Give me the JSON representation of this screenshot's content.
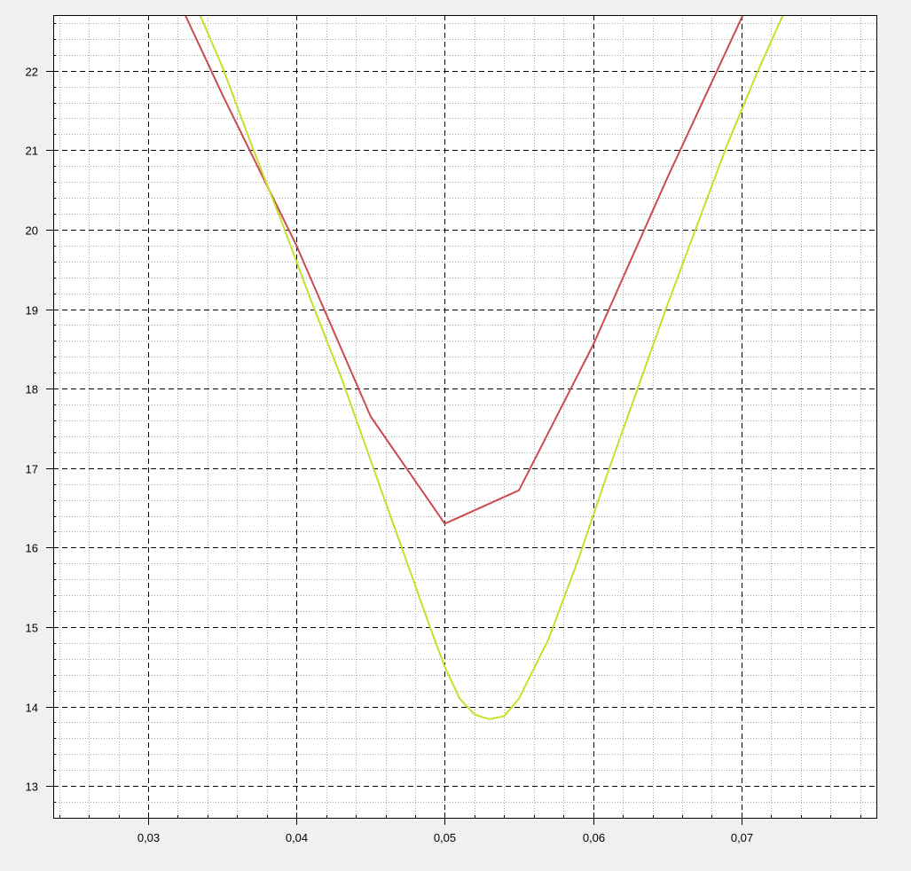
{
  "chart_data": {
    "type": "line",
    "title": "",
    "xlabel": "",
    "ylabel": "",
    "xlim": [
      0.0236,
      0.0791
    ],
    "ylim": [
      12.6,
      22.7
    ],
    "x_ticks": [
      0.03,
      0.04,
      0.05,
      0.06,
      0.07
    ],
    "x_tick_labels": [
      "0,03",
      "0,04",
      "0,05",
      "0,06",
      "0,07"
    ],
    "y_ticks": [
      13,
      14,
      15,
      16,
      17,
      18,
      19,
      20,
      21,
      22
    ],
    "y_tick_labels": [
      "13",
      "14",
      "15",
      "16",
      "17",
      "18",
      "19",
      "20",
      "21",
      "22"
    ],
    "x_minor_step": 0.002,
    "y_minor_step": 0.2,
    "grid": true,
    "legend": "none",
    "series": [
      {
        "color": "#cc4a52",
        "x": [
          0.0325,
          0.035,
          0.04,
          0.045,
          0.05,
          0.055,
          0.06,
          0.065,
          0.0701
        ],
        "y": [
          22.7,
          21.7,
          19.8,
          17.65,
          16.3,
          16.72,
          18.55,
          20.65,
          22.7
        ]
      },
      {
        "color": "#c6e02a",
        "x": [
          0.0335,
          0.035,
          0.037,
          0.039,
          0.041,
          0.043,
          0.045,
          0.047,
          0.049,
          0.05,
          0.051,
          0.052,
          0.053,
          0.054,
          0.055,
          0.057,
          0.059,
          0.061,
          0.063,
          0.065,
          0.067,
          0.069,
          0.071,
          0.0728
        ],
        "y": [
          22.7,
          22.05,
          21.05,
          20.1,
          19.1,
          18.15,
          17.1,
          16.05,
          15.0,
          14.5,
          14.1,
          13.9,
          13.84,
          13.88,
          14.1,
          14.85,
          15.85,
          16.95,
          18.0,
          19.05,
          20.05,
          21.05,
          21.95,
          22.7
        ]
      }
    ]
  }
}
